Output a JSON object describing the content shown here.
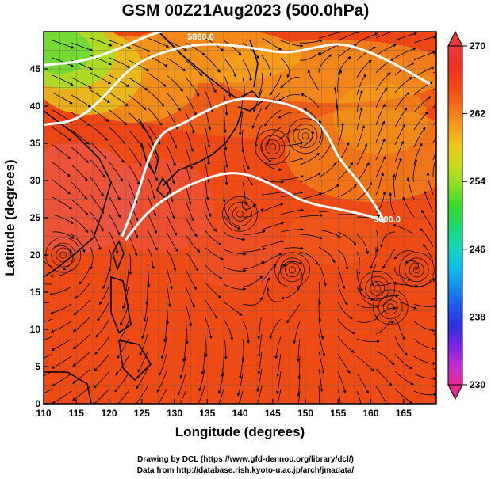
{
  "title": "GSM 00Z21Aug2023 (500.0hPa)",
  "map": {
    "xlabel": "Longitude (degrees)",
    "ylabel": "Latitude  (degrees)",
    "x_ticks": [
      "110",
      "115",
      "120",
      "125",
      "130",
      "135",
      "140",
      "145",
      "150",
      "155",
      "160",
      "165"
    ],
    "y_ticks": [
      "0",
      "5",
      "10",
      "15",
      "20",
      "25",
      "30",
      "35",
      "40",
      "45"
    ],
    "lon_range": [
      110,
      170
    ],
    "lat_range": [
      0,
      50
    ],
    "field": "temperature (K) shaded, 500 hPa streamlines, geopotential height contours",
    "contours": [
      {
        "label": "5900.0",
        "points": [
          [
            122.5,
            22
          ],
          [
            126,
            26
          ],
          [
            131,
            29
          ],
          [
            137,
            31
          ],
          [
            141,
            31
          ],
          [
            146,
            29
          ],
          [
            150,
            27
          ],
          [
            156,
            26
          ],
          [
            161,
            25
          ],
          [
            162.5,
            24
          ],
          [
            159,
            29
          ],
          [
            155,
            33
          ],
          [
            153,
            37
          ],
          [
            149,
            40
          ],
          [
            143,
            41
          ],
          [
            139,
            41
          ],
          [
            134,
            39
          ],
          [
            131,
            37.5
          ],
          [
            128,
            36.5
          ],
          [
            126,
            33
          ],
          [
            124,
            27
          ],
          [
            122,
            22.5
          ]
        ]
      },
      {
        "label": "5880.0",
        "points": [
          [
            110,
            37.5
          ],
          [
            115,
            38
          ],
          [
            119,
            41
          ],
          [
            123,
            45
          ],
          [
            127,
            47
          ],
          [
            134,
            48.5
          ],
          [
            141,
            48
          ],
          [
            147,
            47
          ],
          [
            152,
            48
          ],
          [
            156,
            48.5
          ],
          [
            162,
            46.5
          ],
          [
            169,
            43
          ]
        ]
      },
      {
        "label": "",
        "points": [
          [
            110,
            45.5
          ],
          [
            116,
            46
          ],
          [
            121,
            47.5
          ],
          [
            126,
            49.5
          ],
          [
            128,
            50
          ]
        ]
      }
    ],
    "highs": [
      [
        140,
        25.5
      ],
      [
        145,
        34.5
      ],
      [
        150,
        36
      ],
      [
        167,
        18
      ],
      [
        161,
        15.5
      ]
    ],
    "lows": [
      [
        148,
        18
      ],
      [
        163,
        13
      ],
      [
        113,
        20
      ]
    ]
  },
  "colorbar": {
    "ticks": [
      "270",
      "262",
      "254",
      "246",
      "238",
      "230"
    ],
    "min": 230,
    "max": 270,
    "colors": [
      "#e62b8f",
      "#c12bd9",
      "#7a25e0",
      "#2b33df",
      "#1d5bea",
      "#1293f0",
      "#0fc1e7",
      "#17d8b3",
      "#1fd86a",
      "#36da28",
      "#88de25",
      "#c8dc1e",
      "#efc81b",
      "#f59a19",
      "#f26d17",
      "#f04816",
      "#ed2f21",
      "#ea3b3b"
    ]
  },
  "credits": {
    "line1": "Drawing by DCL (https://www.gfd-dennou.org/library/dcl/)",
    "line2": "Data from http://database.rish.kyoto-u.ac.jp/arch/jmadata/"
  }
}
